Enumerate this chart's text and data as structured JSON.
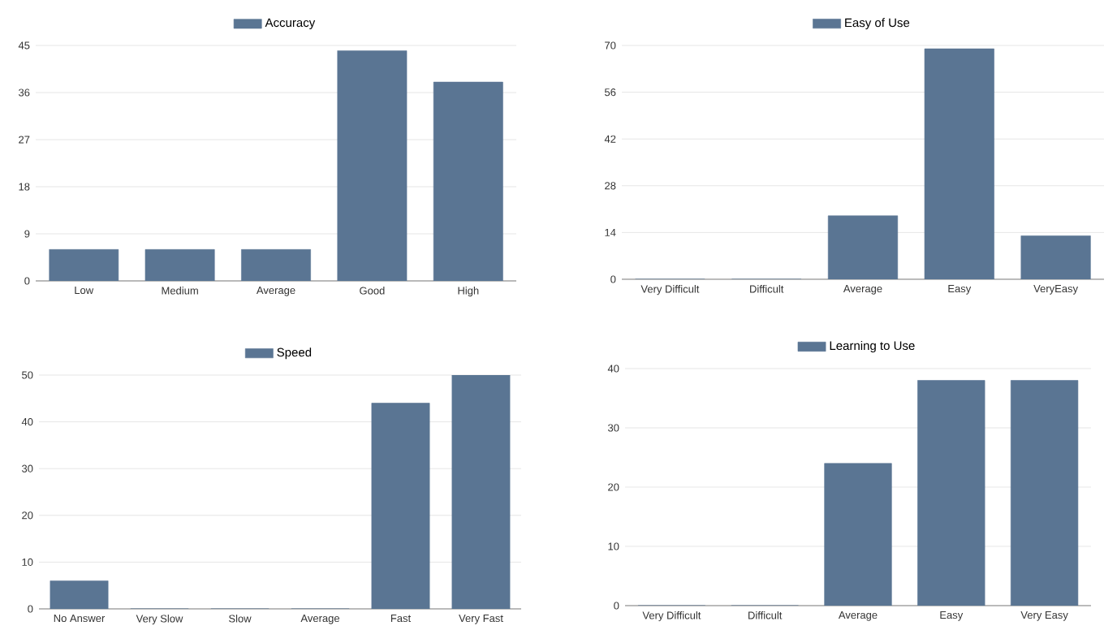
{
  "chart_data": [
    {
      "type": "bar",
      "categories": [
        "Low",
        "Medium",
        "Average",
        "Good",
        "High"
      ],
      "series": [
        {
          "name": "Accuracy",
          "color": "#5a7593",
          "values": [
            6,
            6,
            6,
            44,
            38
          ]
        }
      ],
      "ylim": [
        0,
        45
      ],
      "yticks": [
        0,
        9,
        18,
        27,
        36,
        45
      ],
      "grid": "y",
      "legend": "top"
    },
    {
      "type": "bar",
      "categories": [
        "Very Difficult",
        "Difficult",
        "Average",
        "Easy",
        "VeryEasy"
      ],
      "series": [
        {
          "name": "Easy of Use",
          "color": "#5a7593",
          "values": [
            0,
            0,
            19,
            69,
            13
          ]
        }
      ],
      "ylim": [
        0,
        70
      ],
      "yticks": [
        0,
        14,
        28,
        42,
        56,
        70
      ],
      "grid": "y",
      "legend": "top"
    },
    {
      "type": "bar",
      "categories": [
        "No Answer",
        "Very Slow",
        "Slow",
        "Average",
        "Fast",
        "Very Fast"
      ],
      "series": [
        {
          "name": "Speed",
          "color": "#5a7593",
          "values": [
            6,
            0,
            0,
            0,
            44,
            50
          ]
        }
      ],
      "ylim": [
        0,
        50
      ],
      "yticks": [
        0,
        10,
        20,
        30,
        40,
        50
      ],
      "grid": "y",
      "legend": "top"
    },
    {
      "type": "bar",
      "categories": [
        "Very Difficult",
        "Difficult",
        "Average",
        "Easy",
        "Very Easy"
      ],
      "series": [
        {
          "name": "Learning to Use",
          "color": "#5a7593",
          "values": [
            0,
            0,
            24,
            38,
            38
          ]
        }
      ],
      "ylim": [
        0,
        40
      ],
      "yticks": [
        0,
        10,
        20,
        30,
        40
      ],
      "grid": "y",
      "legend": "top"
    }
  ]
}
